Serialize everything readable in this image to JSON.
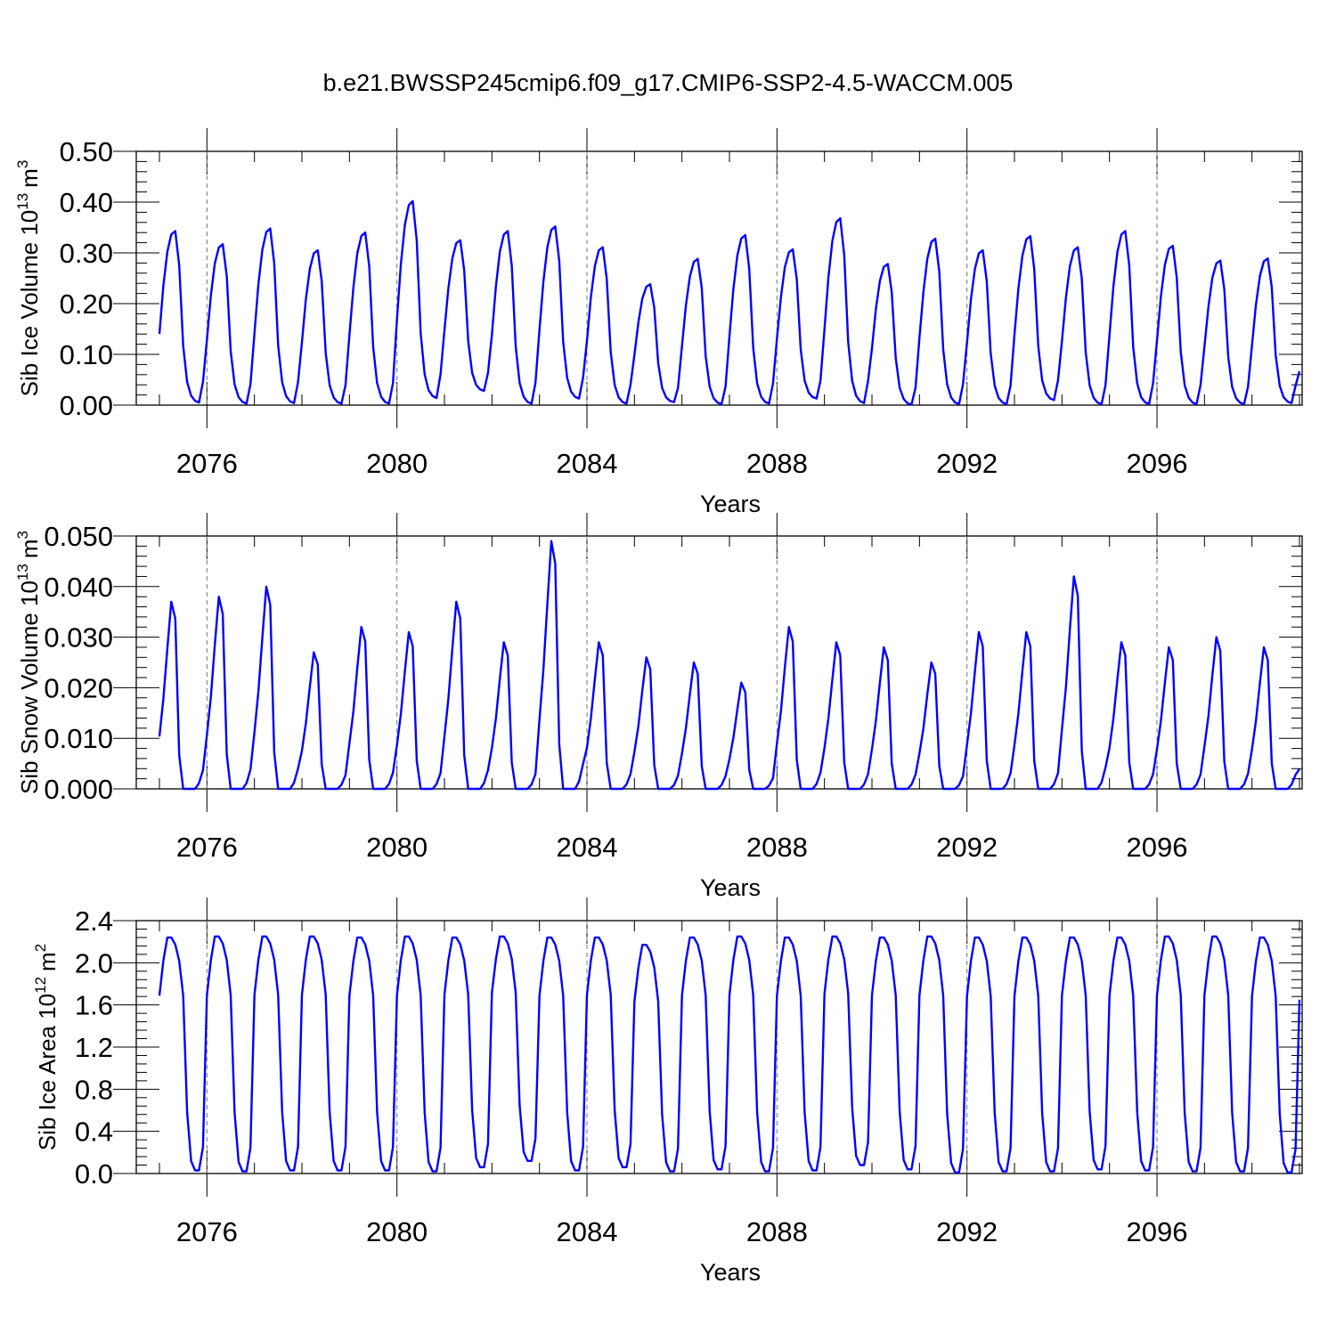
{
  "figure": {
    "title": "b.e21.BWSSP245cmip6.f09_g17.CMIP6-SSP2-4.5-WACCM.005"
  },
  "chart_data": [
    {
      "type": "line",
      "ylabel": "Sib Ice Volume 10^13 m^3",
      "ylabel_parts": {
        "main": "Sib Ice Volume 10",
        "exp": "13",
        "unit": "m",
        "unit_exp": "3"
      },
      "xlabel": "Years",
      "xlim": [
        2075,
        2099
      ],
      "ylim": [
        0,
        0.5
      ],
      "yticks": [
        "0.00",
        "0.10",
        "0.20",
        "0.30",
        "0.40",
        "0.50"
      ],
      "xticks": [
        "2076",
        "2080",
        "2084",
        "2088",
        "2092",
        "2096"
      ],
      "grid": "dashed vertical at major x ticks",
      "line_color": "#0000ff",
      "start": 2075.0,
      "step_months": 1,
      "peaks": [
        0.343,
        0.317,
        0.348,
        0.305,
        0.34,
        0.402,
        0.325,
        0.343,
        0.352,
        0.311,
        0.238,
        0.288,
        0.335,
        0.307,
        0.368,
        0.278,
        0.328,
        0.305,
        0.333,
        0.311,
        0.343,
        0.314,
        0.285,
        0.289
      ],
      "troughs": [
        0.005,
        0.003,
        0.004,
        0.003,
        0.003,
        0.014,
        0.028,
        0.003,
        0.013,
        0.003,
        0.006,
        0.002,
        0.003,
        0.013,
        0.004,
        0.001,
        0.002,
        0.002,
        0.01,
        0.002,
        0.002,
        0.002,
        0.002,
        0.004
      ]
    },
    {
      "type": "line",
      "ylabel": "Sib Snow Volume 10^13 m^3",
      "ylabel_parts": {
        "main": "Sib Snow Volume 10",
        "exp": "13",
        "unit": "m",
        "unit_exp": "3"
      },
      "xlabel": "Years",
      "xlim": [
        2075,
        2099
      ],
      "ylim": [
        0,
        0.05
      ],
      "yticks": [
        "0.000",
        "0.010",
        "0.020",
        "0.030",
        "0.040",
        "0.050"
      ],
      "xticks": [
        "2076",
        "2080",
        "2084",
        "2088",
        "2092",
        "2096"
      ],
      "grid": "dashed vertical at major x ticks",
      "line_color": "#0000ff",
      "start": 2075.0,
      "step_months": 1,
      "peaks": [
        0.037,
        0.038,
        0.04,
        0.027,
        0.032,
        0.031,
        0.037,
        0.029,
        0.049,
        0.029,
        0.026,
        0.025,
        0.021,
        0.032,
        0.029,
        0.028,
        0.025,
        0.031,
        0.031,
        0.042,
        0.029,
        0.028,
        0.03,
        0.028
      ]
    },
    {
      "type": "line",
      "ylabel": "Sib Ice Area 10^12 m^2",
      "ylabel_parts": {
        "main": "Sib Ice Area 10",
        "exp": "12",
        "unit": "m",
        "unit_exp": "2"
      },
      "xlabel": "Years",
      "xlim": [
        2075,
        2099
      ],
      "ylim": [
        0,
        2.4
      ],
      "yticks": [
        "0.0",
        "0.4",
        "0.8",
        "1.2",
        "1.6",
        "2.0",
        "2.4"
      ],
      "xticks": [
        "2076",
        "2080",
        "2084",
        "2088",
        "2092",
        "2096"
      ],
      "grid": "dashed vertical at major x ticks",
      "line_color": "#0000ff",
      "start": 2075.0,
      "step_months": 1,
      "peaks": [
        2.24,
        2.25,
        2.25,
        2.25,
        2.24,
        2.25,
        2.24,
        2.25,
        2.24,
        2.24,
        2.17,
        2.24,
        2.25,
        2.24,
        2.25,
        2.24,
        2.25,
        2.24,
        2.24,
        2.24,
        2.24,
        2.25,
        2.25,
        2.24
      ],
      "troughs": [
        0.03,
        0.02,
        0.03,
        0.03,
        0.03,
        0.02,
        0.06,
        0.12,
        0.03,
        0.06,
        0.02,
        0.04,
        0.02,
        0.03,
        0.08,
        0.04,
        0.01,
        0.02,
        0.02,
        0.04,
        0.03,
        0.02,
        0.02,
        0.01
      ]
    }
  ]
}
